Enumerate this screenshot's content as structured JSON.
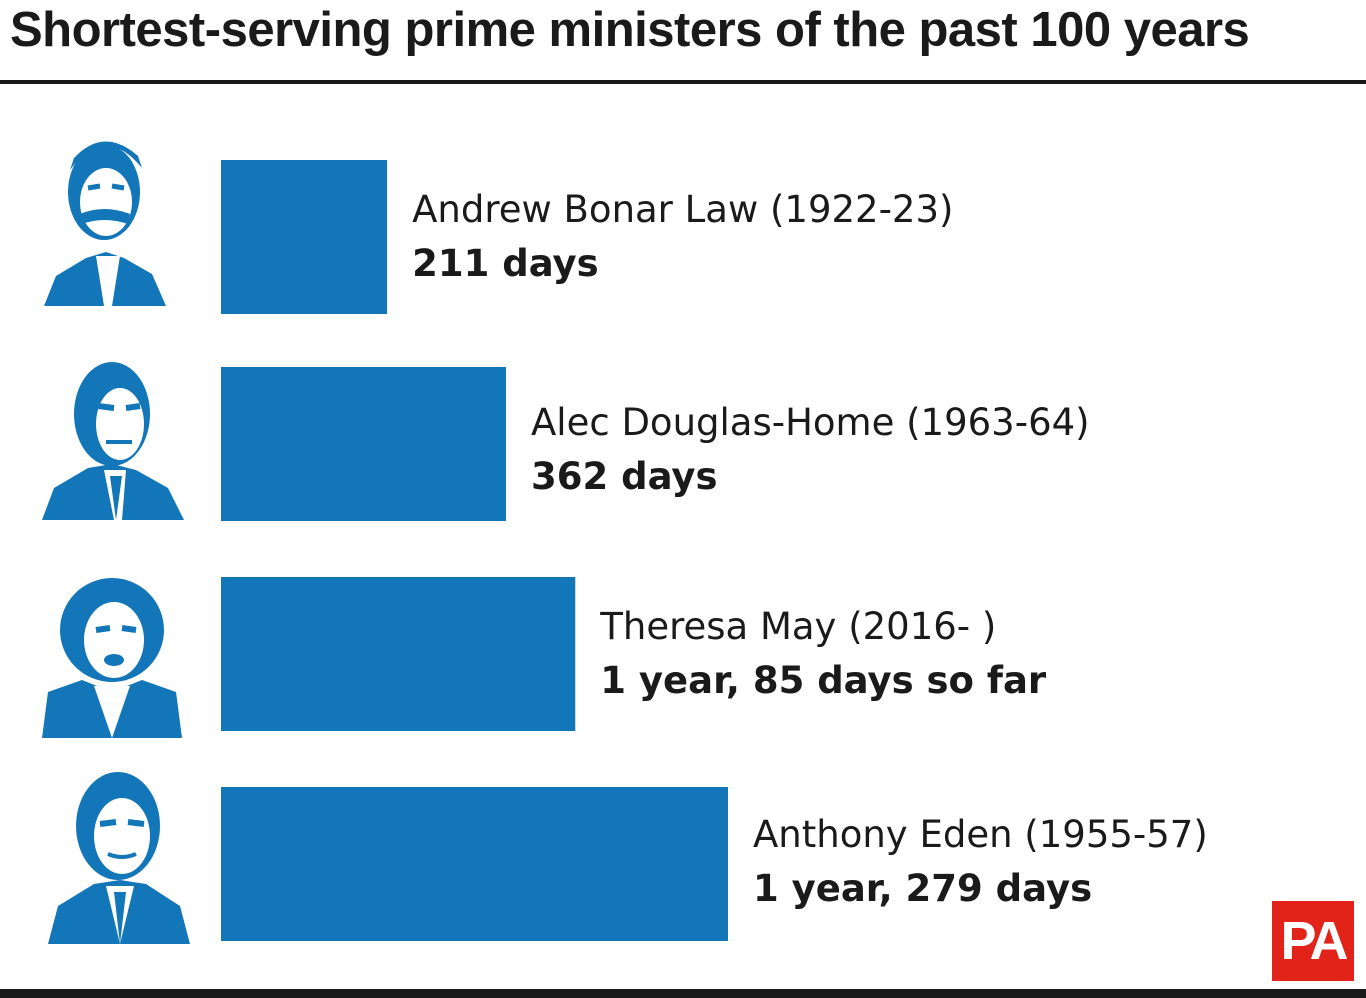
{
  "title": "Shortest-serving prime ministers of the past 100 years",
  "colors": {
    "bar": "#1276b9",
    "text": "#1a1a1a",
    "logo": "#e2231a",
    "rule": "#1a1a1a"
  },
  "logo": {
    "text": "PA"
  },
  "chart_data": {
    "type": "bar",
    "orientation": "horizontal",
    "title": "Shortest-serving prime ministers of the past 100 years",
    "xlabel": "",
    "ylabel": "",
    "grid": false,
    "unit": "days",
    "categories": [
      "Andrew Bonar Law (1922-23)",
      "Alec Douglas-Home (1963-64)",
      "Theresa May (2016- )",
      "Anthony Eden (1955-57)"
    ],
    "values": [
      211,
      362,
      450,
      644
    ],
    "value_labels": [
      "211 days",
      "362 days",
      "1 year, 85 days so far",
      "1 year, 279 days"
    ],
    "portraits": [
      "portrait-bonar-law-icon",
      "portrait-douglas-home-icon",
      "portrait-may-icon",
      "portrait-eden-icon"
    ]
  }
}
